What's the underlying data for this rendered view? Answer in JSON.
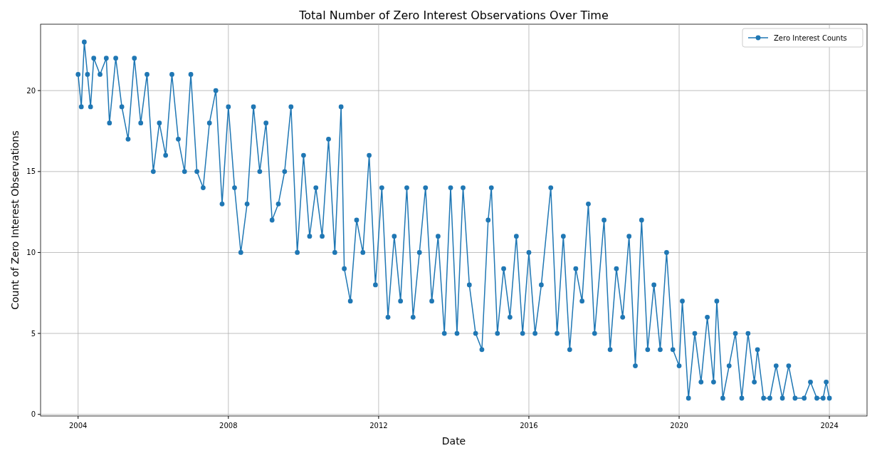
{
  "chart_data": {
    "type": "line",
    "title": "Total Number of Zero Interest Observations Over Time",
    "xlabel": "Date",
    "ylabel": "Count of Zero Interest Observations",
    "x": [
      "2004-01",
      "2004-02",
      "2004-03",
      "2004-04",
      "2004-05",
      "2004-06",
      "2004-08",
      "2004-10",
      "2004-11",
      "2005-01",
      "2005-03",
      "2005-05",
      "2005-07",
      "2005-09",
      "2005-11",
      "2006-01",
      "2006-03",
      "2006-05",
      "2006-07",
      "2006-09",
      "2006-11",
      "2007-01",
      "2007-03",
      "2007-05",
      "2007-07",
      "2007-09",
      "2007-11",
      "2008-01",
      "2008-03",
      "2008-05",
      "2008-07",
      "2008-09",
      "2008-11",
      "2009-01",
      "2009-03",
      "2009-05",
      "2009-07",
      "2009-09",
      "2009-11",
      "2010-01",
      "2010-03",
      "2010-05",
      "2010-07",
      "2010-09",
      "2010-11",
      "2011-01",
      "2011-02",
      "2011-04",
      "2011-06",
      "2011-08",
      "2011-10",
      "2011-12",
      "2012-02",
      "2012-04",
      "2012-06",
      "2012-08",
      "2012-10",
      "2012-12",
      "2013-02",
      "2013-04",
      "2013-06",
      "2013-08",
      "2013-10",
      "2013-12",
      "2014-02",
      "2014-04",
      "2014-06",
      "2014-08",
      "2014-10",
      "2014-12",
      "2015-01",
      "2015-03",
      "2015-05",
      "2015-07",
      "2015-09",
      "2015-11",
      "2016-01",
      "2016-03",
      "2016-05",
      "2016-08",
      "2016-10",
      "2016-12",
      "2017-02",
      "2017-04",
      "2017-06",
      "2017-08",
      "2017-10",
      "2018-01",
      "2018-03",
      "2018-05",
      "2018-07",
      "2018-09",
      "2018-11",
      "2019-01",
      "2019-03",
      "2019-05",
      "2019-07",
      "2019-09",
      "2019-11",
      "2020-01",
      "2020-02",
      "2020-04",
      "2020-06",
      "2020-08",
      "2020-10",
      "2020-12",
      "2021-01",
      "2021-03",
      "2021-05",
      "2021-07",
      "2021-09",
      "2021-11",
      "2022-01",
      "2022-02",
      "2022-04",
      "2022-06",
      "2022-08",
      "2022-10",
      "2022-12",
      "2023-02",
      "2023-05",
      "2023-07",
      "2023-09",
      "2023-11",
      "2023-12",
      "2024-01"
    ],
    "series": [
      {
        "name": "Zero Interest Counts",
        "color": "#1f77b4",
        "values": [
          21,
          19,
          23,
          21,
          19,
          22,
          21,
          22,
          18,
          22,
          19,
          17,
          22,
          18,
          21,
          15,
          18,
          16,
          21,
          17,
          15,
          21,
          15,
          14,
          18,
          20,
          13,
          19,
          14,
          10,
          13,
          19,
          15,
          18,
          12,
          13,
          15,
          19,
          10,
          16,
          11,
          14,
          11,
          17,
          10,
          19,
          9,
          7,
          12,
          10,
          16,
          8,
          14,
          6,
          11,
          7,
          14,
          6,
          10,
          14,
          7,
          11,
          5,
          14,
          5,
          14,
          8,
          5,
          4,
          12,
          14,
          5,
          9,
          6,
          11,
          5,
          10,
          5,
          8,
          14,
          5,
          11,
          4,
          9,
          7,
          13,
          5,
          12,
          4,
          9,
          6,
          11,
          3,
          12,
          4,
          8,
          4,
          10,
          4,
          3,
          7,
          1,
          5,
          2,
          6,
          2,
          7,
          1,
          3,
          5,
          1,
          5,
          2,
          4,
          1,
          1,
          3,
          1,
          3,
          1,
          1,
          2,
          1,
          1,
          2,
          1
        ]
      }
    ],
    "xlim": [
      "2003-01",
      "2025-01"
    ],
    "xticks": [
      "2004",
      "2008",
      "2012",
      "2016",
      "2020",
      "2024"
    ],
    "ylim": [
      -0.1,
      24.1
    ],
    "yticks": [
      0,
      5,
      10,
      15,
      20
    ],
    "grid": true,
    "legend": "top right",
    "marker": "circle",
    "line_style": "solid"
  }
}
